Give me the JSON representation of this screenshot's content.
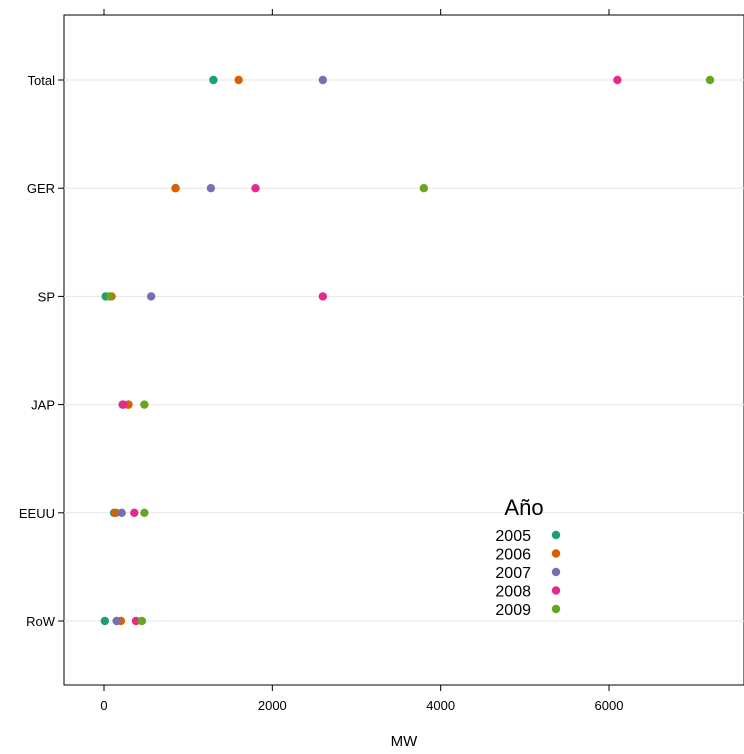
{
  "chart_data": {
    "type": "scatter",
    "title": "",
    "xlabel": "MW",
    "ylabel": "",
    "xlim": [
      -480,
      7600
    ],
    "xticks": [
      0,
      2000,
      4000,
      6000
    ],
    "grid": true,
    "categories": [
      "Total",
      "GER",
      "SP",
      "JAP",
      "EEUU",
      "RoW"
    ],
    "legend": {
      "title": "Año",
      "position": "bottom-right"
    },
    "series": [
      {
        "name": "2005",
        "color": "#1B9E77",
        "values": [
          1300,
          850,
          20,
          290,
          120,
          10
        ]
      },
      {
        "name": "2006",
        "color": "#D95F02",
        "values": [
          1600,
          850,
          90,
          290,
          140,
          200
        ]
      },
      {
        "name": "2007",
        "color": "#7570B3",
        "values": [
          2600,
          1270,
          560,
          220,
          210,
          150
        ]
      },
      {
        "name": "2008",
        "color": "#E7298A",
        "values": [
          6100,
          1800,
          2600,
          230,
          360,
          380
        ]
      },
      {
        "name": "2009",
        "color": "#66A61E",
        "values": [
          7200,
          3800,
          70,
          480,
          480,
          450
        ]
      }
    ]
  }
}
